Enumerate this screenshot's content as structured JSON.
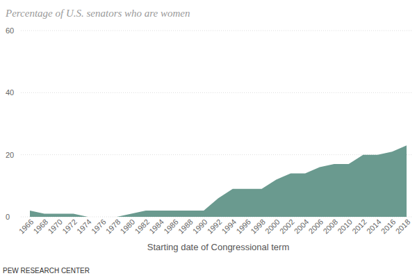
{
  "chart_data": {
    "type": "area",
    "title": "Percentage of U.S. senators who are women",
    "x_label": "Starting date of Congressional term",
    "source": "PEW RESEARCH CENTER",
    "categories": [
      "1966",
      "1968",
      "1970",
      "1972",
      "1974",
      "1976",
      "1978",
      "1980",
      "1982",
      "1984",
      "1986",
      "1988",
      "1990",
      "1992",
      "1994",
      "1996",
      "1998",
      "2000",
      "2002",
      "2004",
      "2006",
      "2008",
      "2010",
      "2012",
      "2014",
      "2016",
      "2018"
    ],
    "values": [
      2,
      1,
      1,
      1,
      0,
      0,
      0,
      1,
      2,
      2,
      2,
      2,
      2,
      6,
      9,
      9,
      9,
      12,
      14,
      14,
      16,
      17,
      17,
      20,
      20,
      21,
      23
    ],
    "color": "#6a9a8f",
    "ylim": [
      0,
      60
    ],
    "yticks": [
      0,
      20,
      40,
      60
    ],
    "grid": true
  }
}
